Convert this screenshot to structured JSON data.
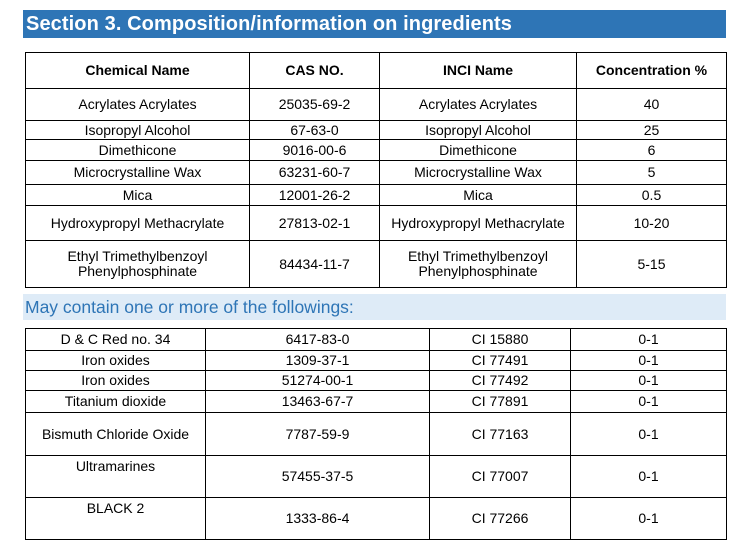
{
  "section_title": "Section 3. Composition/information on ingredients",
  "table1": {
    "headers": [
      "Chemical Name",
      "CAS NO.",
      "INCI Name",
      "Concentration %"
    ],
    "rows": [
      {
        "chemical": "Acrylates Acrylates",
        "cas": "25035-69-2",
        "inci": "Acrylates Acrylates",
        "conc": "40"
      },
      {
        "chemical": "Isopropyl Alcohol",
        "cas": "67-63-0",
        "inci": "Isopropyl Alcohol",
        "conc": "25"
      },
      {
        "chemical": "Dimethicone",
        "cas": "9016-00-6",
        "inci": "Dimethicone",
        "conc": "6"
      },
      {
        "chemical": "Microcrystalline Wax",
        "cas": "63231-60-7",
        "inci": "Microcrystalline Wax",
        "conc": "5"
      },
      {
        "chemical": "Mica",
        "cas": "12001-26-2",
        "inci": "Mica",
        "conc": "0.5"
      },
      {
        "chemical": "Hydroxypropyl Methacrylate",
        "cas": "27813-02-1",
        "inci": "Hydroxypropyl Methacrylate",
        "conc": "10-20"
      },
      {
        "chemical": "Ethyl Trimethylbenzoyl Phenylphosphinate",
        "cas": "84434-11-7",
        "inci": "Ethyl Trimethylbenzoyl Phenylphosphinate",
        "conc": "5-15"
      }
    ]
  },
  "subsection_title": "May contain one or more of the followings:",
  "table2": {
    "rows": [
      {
        "chemical": "D & C Red no. 34",
        "cas": "6417-83-0",
        "inci": "CI 15880",
        "conc": "0-1"
      },
      {
        "chemical": "Iron oxides",
        "cas": "1309-37-1",
        "inci": "CI 77491",
        "conc": "0-1"
      },
      {
        "chemical": "Iron oxides",
        "cas": "51274-00-1",
        "inci": "CI 77492",
        "conc": "0-1"
      },
      {
        "chemical": "Titanium dioxide",
        "cas": "13463-67-7",
        "inci": "CI 77891",
        "conc": "0-1"
      },
      {
        "chemical": "Bismuth Chloride Oxide",
        "cas": "7787-59-9",
        "inci": "CI 77163",
        "conc": "0-1"
      },
      {
        "chemical": "Ultramarines",
        "cas": "57455-37-5",
        "inci": "CI 77007",
        "conc": "0-1"
      },
      {
        "chemical": "BLACK 2",
        "cas": "1333-86-4",
        "inci": "CI 77266",
        "conc": "0-1"
      }
    ]
  }
}
